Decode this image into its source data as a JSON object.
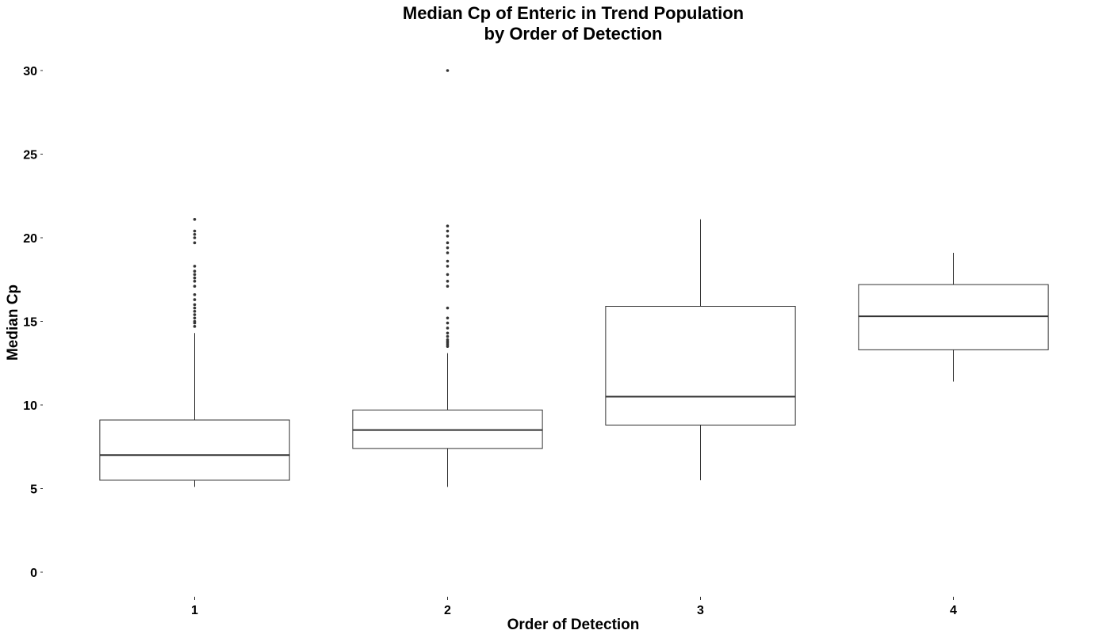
{
  "chart_data": {
    "type": "boxplot",
    "title": "Median Cp of Enteric in Trend Population",
    "subtitle": "by Order of Detection",
    "xlabel": "Order of Detection",
    "ylabel": "Median Cp",
    "ylim": [
      0,
      30
    ],
    "yticks": [
      0,
      5,
      10,
      15,
      20,
      25,
      30
    ],
    "categories": [
      "1",
      "2",
      "3",
      "4"
    ],
    "grid": false,
    "box_color": "#333333",
    "outlier_color": "#333333",
    "boxes": [
      {
        "category": "1",
        "whisker_low": 5.1,
        "q1": 5.5,
        "median": 7.0,
        "q3": 9.1,
        "whisker_high": 14.3,
        "outliers": [
          14.7,
          14.9,
          15.0,
          15.2,
          15.4,
          15.6,
          15.8,
          16.0,
          16.3,
          16.6,
          17.1,
          17.4,
          17.6,
          17.8,
          18.0,
          18.3,
          19.7,
          20.0,
          20.2,
          20.4,
          21.1
        ]
      },
      {
        "category": "2",
        "whisker_low": 5.1,
        "q1": 7.4,
        "median": 8.5,
        "q3": 9.7,
        "whisker_high": 13.1,
        "outliers": [
          13.5,
          13.6,
          13.7,
          13.8,
          13.9,
          14.1,
          14.3,
          14.6,
          14.9,
          15.2,
          15.8,
          17.1,
          17.4,
          17.8,
          18.3,
          18.6,
          19.1,
          19.4,
          19.7,
          20.1,
          20.4,
          20.7,
          30.0
        ]
      },
      {
        "category": "3",
        "whisker_low": 5.5,
        "q1": 8.8,
        "median": 10.5,
        "q3": 15.9,
        "whisker_high": 21.1,
        "outliers": []
      },
      {
        "category": "4",
        "whisker_low": 11.4,
        "q1": 13.3,
        "median": 15.3,
        "q3": 17.2,
        "whisker_high": 19.1,
        "outliers": []
      }
    ]
  }
}
